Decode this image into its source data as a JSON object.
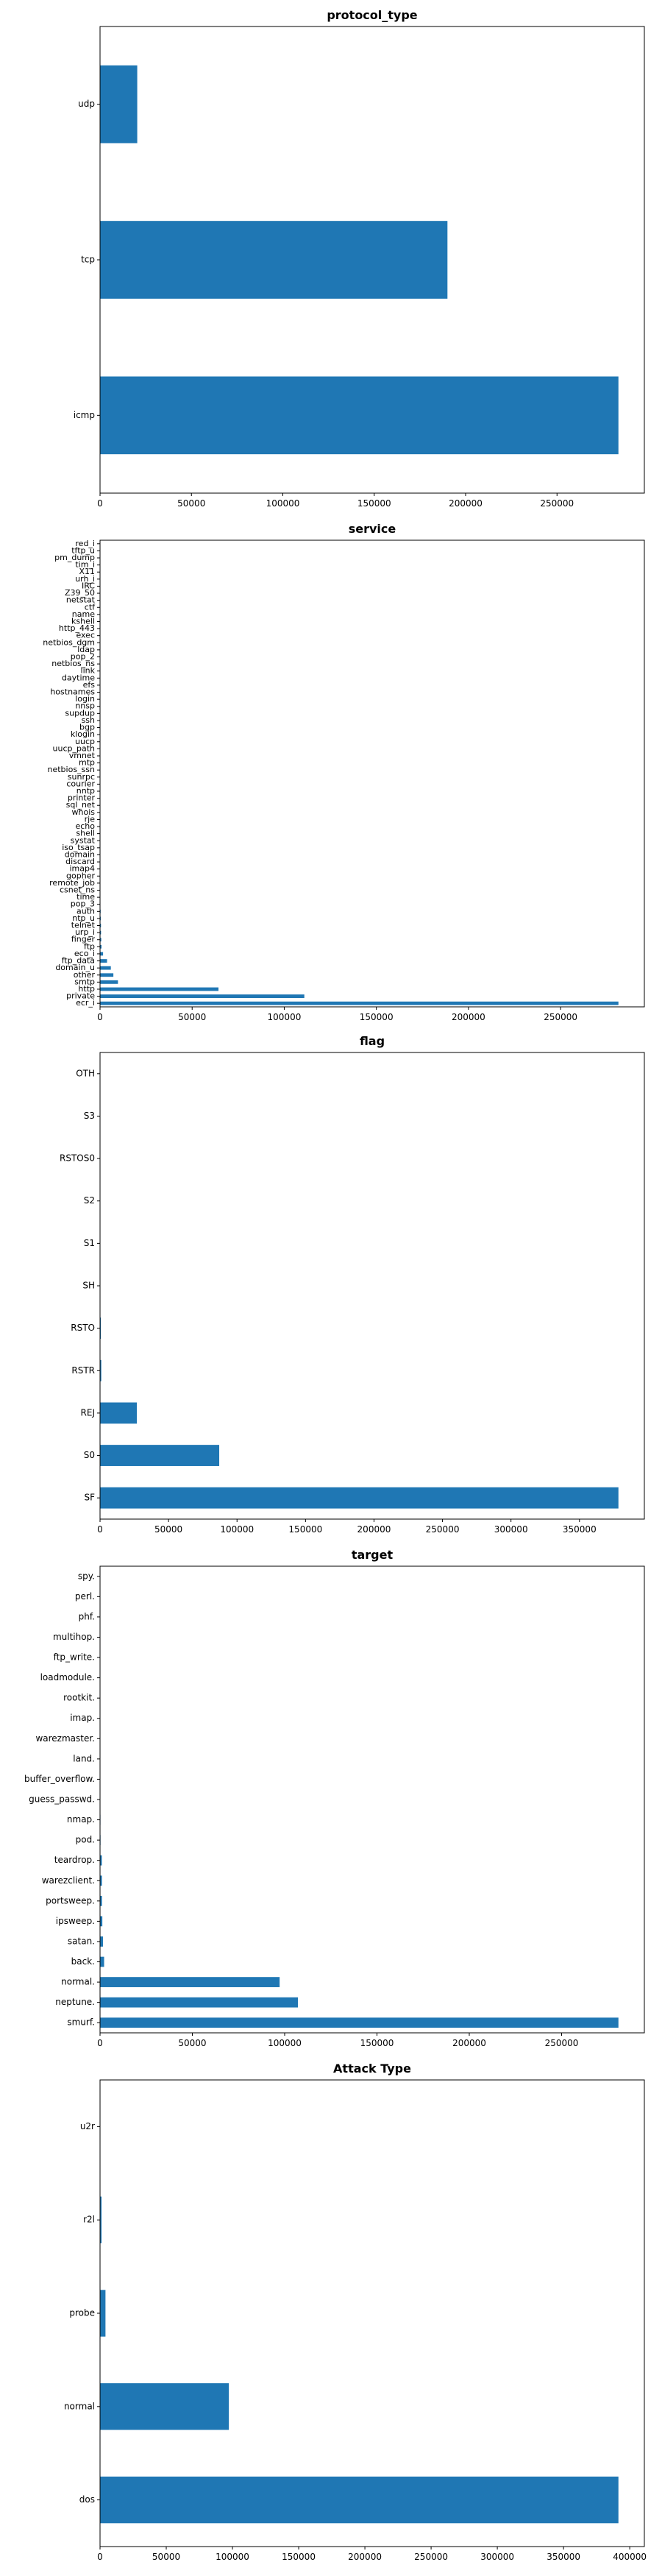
{
  "chart_data": [
    {
      "type": "bar",
      "orientation": "horizontal",
      "title": "protocol_type",
      "categories": [
        "icmp",
        "tcp",
        "udp"
      ],
      "values": [
        283602,
        190065,
        20354
      ],
      "xticks": [
        0,
        50000,
        100000,
        150000,
        200000,
        250000
      ],
      "xlim": [
        0,
        297782
      ],
      "color": "#1f77b4",
      "grid": false
    },
    {
      "type": "bar",
      "orientation": "horizontal",
      "title": "service",
      "categories": [
        "ecr_i",
        "private",
        "http",
        "smtp",
        "other",
        "domain_u",
        "ftp_data",
        "eco_i",
        "ftp",
        "finger",
        "urp_i",
        "telnet",
        "ntp_u",
        "auth",
        "pop_3",
        "time",
        "csnet_ns",
        "remote_job",
        "gopher",
        "imap4",
        "discard",
        "domain",
        "iso_tsap",
        "systat",
        "shell",
        "echo",
        "rje",
        "whois",
        "sql_net",
        "printer",
        "nntp",
        "courier",
        "sunrpc",
        "netbios_ssn",
        "mtp",
        "vmnet",
        "uucp_path",
        "uucp",
        "klogin",
        "bgp",
        "ssh",
        "supdup",
        "nnsp",
        "login",
        "hostnames",
        "efs",
        "daytime",
        "link",
        "netbios_ns",
        "pop_2",
        "ldap",
        "netbios_dgm",
        "exec",
        "http_443",
        "kshell",
        "name",
        "ctf",
        "netstat",
        "Z39_50",
        "IRC",
        "urh_i",
        "X11",
        "tim_i",
        "pm_dump",
        "tftp_u",
        "red_i"
      ],
      "values": [
        281400,
        110893,
        64293,
        9723,
        7237,
        5863,
        3798,
        1642,
        798,
        670,
        538,
        513,
        380,
        328,
        202,
        157,
        126,
        120,
        117,
        117,
        107,
        107,
        106,
        106,
        105,
        105,
        105,
        105,
        104,
        104,
        104,
        104,
        104,
        103,
        103,
        103,
        103,
        103,
        103,
        102,
        102,
        102,
        101,
        101,
        101,
        101,
        101,
        100,
        100,
        98,
        98,
        98,
        98,
        98,
        98,
        97,
        97,
        97,
        96,
        43,
        14,
        11,
        7,
        1,
        1,
        1
      ],
      "xticks": [
        0,
        50000,
        100000,
        150000,
        200000,
        250000
      ],
      "xlim": [
        0,
        295470
      ],
      "color": "#1f77b4",
      "grid": false
    },
    {
      "type": "bar",
      "orientation": "horizontal",
      "title": "flag",
      "categories": [
        "SF",
        "S0",
        "REJ",
        "RSTR",
        "RSTO",
        "SH",
        "S1",
        "S2",
        "RSTOS0",
        "S3",
        "OTH"
      ],
      "values": [
        378440,
        87007,
        26875,
        903,
        579,
        107,
        57,
        24,
        11,
        10,
        8
      ],
      "xticks": [
        0,
        50000,
        100000,
        150000,
        200000,
        250000,
        300000,
        350000
      ],
      "xlim": [
        0,
        397362
      ],
      "color": "#1f77b4",
      "grid": false
    },
    {
      "type": "bar",
      "orientation": "horizontal",
      "title": "target",
      "categories": [
        "smurf.",
        "neptune.",
        "normal.",
        "back.",
        "satan.",
        "ipsweep.",
        "portsweep.",
        "warezclient.",
        "teardrop.",
        "pod.",
        "nmap.",
        "guess_passwd.",
        "buffer_overflow.",
        "land.",
        "warezmaster.",
        "imap.",
        "rootkit.",
        "loadmodule.",
        "ftp_write.",
        "multihop.",
        "phf.",
        "perl.",
        "spy."
      ],
      "values": [
        280790,
        107201,
        97278,
        2203,
        1589,
        1247,
        1040,
        1020,
        979,
        264,
        231,
        53,
        30,
        21,
        20,
        12,
        10,
        9,
        8,
        7,
        4,
        3,
        2
      ],
      "xticks": [
        0,
        50000,
        100000,
        150000,
        200000,
        250000
      ],
      "xlim": [
        0,
        294830
      ],
      "color": "#1f77b4",
      "grid": false
    },
    {
      "type": "bar",
      "orientation": "horizontal",
      "title": "Attack Type",
      "categories": [
        "dos",
        "normal",
        "probe",
        "r2l",
        "u2r"
      ],
      "values": [
        391458,
        97278,
        4107,
        1126,
        52
      ],
      "xticks": [
        0,
        50000,
        100000,
        150000,
        200000,
        250000,
        300000,
        350000,
        400000
      ],
      "xlim": [
        0,
        411031
      ],
      "color": "#1f77b4",
      "grid": false
    }
  ]
}
